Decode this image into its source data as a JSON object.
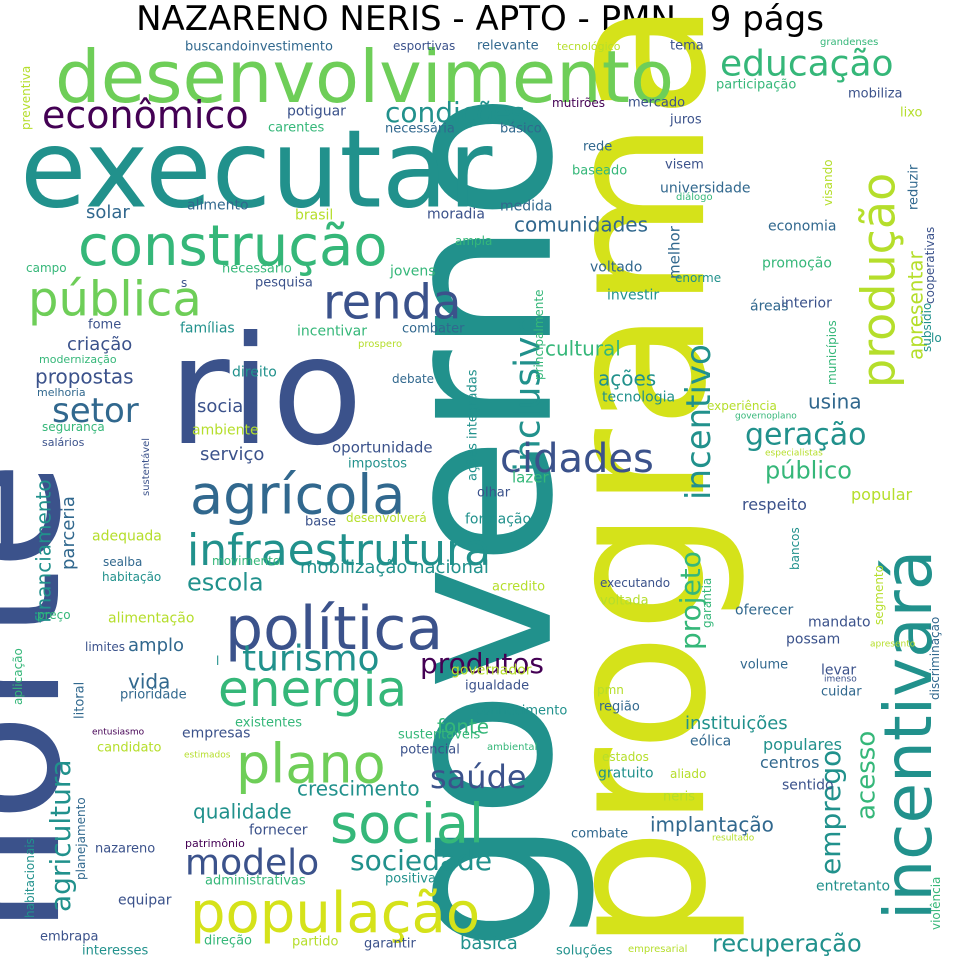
{
  "title": "NAZARENO NERIS - APTO - PMN - 9 págs",
  "palette": {
    "purple": "#440154",
    "indigo": "#3b528b",
    "blue": "#31688e",
    "teal": "#21918c",
    "green": "#35b779",
    "lightgreen": "#6ece58",
    "lime": "#b5de2b",
    "yellow": "#d5e21a"
  },
  "words": [
    "governo",
    "programa",
    "norte",
    "rio",
    "executar",
    "desenvolvimento",
    "construção",
    "pública",
    "renda",
    "política",
    "agrícola",
    "energia",
    "infraestrutura",
    "social",
    "população",
    "plano",
    "incentivará",
    "produção",
    "inclusive",
    "incentivo",
    "cidades",
    "educação",
    "econômico",
    "condições",
    "setor",
    "turismo",
    "modelo",
    "sociedade",
    "saúde",
    "agricultura",
    "emprego",
    "projeto",
    "recuperação",
    "geração",
    "público",
    "acesso",
    "apresentar",
    "escola",
    "produtos",
    "solar",
    "comunidades",
    "cultural",
    "ações",
    "criação",
    "propostas",
    "sociais",
    "serviço",
    "usina",
    "qualidade",
    "implantação",
    "crescimento",
    "fonte",
    "financiamento",
    "parceria",
    "amplo",
    "vida",
    "mobilização nacional",
    "básica",
    "respeito",
    "popular",
    "oportunidade",
    "lazer",
    "formação",
    "instituições",
    "populares",
    "centros",
    "sentido",
    "eólica",
    "universidade",
    "economia",
    "promoção",
    "áreas",
    "interior",
    "tecnologia",
    "ações integradas",
    "principalmente",
    "melhor",
    "enorme",
    "voltado",
    "investir",
    "medida",
    "moradia",
    "brasil",
    "ampla",
    "jovens",
    "necessário",
    "pesquisa",
    "famílias",
    "fome",
    "incentivar",
    "combater",
    "direito",
    "ambiente",
    "impostos",
    "olhar",
    "base",
    "desenvolverá",
    "segurança",
    "salários",
    "melhoria",
    "modernização",
    "campo",
    "potiguar",
    "alimento",
    "carentes",
    "necessária",
    "básico",
    "mutirões",
    "mercado",
    "juros",
    "rede",
    "baseado",
    "visem",
    "diálogo",
    "reduzir",
    "lixo",
    "mobiliza",
    "participação",
    "tema",
    "grandenses",
    "tecnológico",
    "relevante",
    "esportivas",
    "investimento",
    "buscando",
    "preventiva",
    "visando",
    "cooperativas",
    "municípios",
    "subsídio",
    "lo",
    "prospero",
    "debate",
    "experiência",
    "governoplano",
    "especialistas",
    "sustentável",
    "adequada",
    "sealba",
    "habitação",
    "movimento",
    "alimentação",
    "preço",
    "limites",
    "prioridade",
    "acredito",
    "executando",
    "voltada",
    "oferecer",
    "mandato",
    "possam",
    "segmento",
    "discriminação",
    "apresento",
    "volume",
    "levar",
    "cuidar",
    "imenso",
    "garantia",
    "bancos",
    "governador",
    "igualdade",
    "conhecimento",
    "região",
    "pmn",
    "existentes",
    "sustentáveis",
    "empresas",
    "candidato",
    "entusiasmo",
    "estimados",
    "aplicação",
    "litoral",
    "potencial",
    "ambiental",
    "estados",
    "gratuito",
    "aliado",
    "neris",
    "resultado",
    "violência",
    "entretanto",
    "combate",
    "fornecer",
    "patrimônio",
    "nazareno",
    "administrativas",
    "positiva",
    "planejamento",
    "habitacionais",
    "equipar",
    "embrapa",
    "interesses",
    "direção",
    "partido",
    "garantir",
    "soluções",
    "empresarial",
    "s",
    "l"
  ]
}
